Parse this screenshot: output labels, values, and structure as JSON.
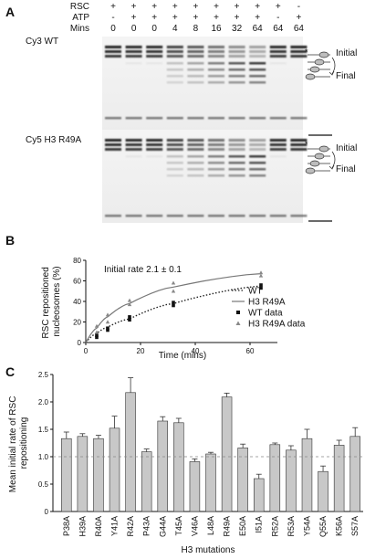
{
  "panels": {
    "a": {
      "letter": "A",
      "row_labels": [
        "RSC",
        "ATP",
        "Mins"
      ],
      "lanes": [
        {
          "rsc": "+",
          "atp": "-",
          "mins": "0"
        },
        {
          "rsc": "+",
          "atp": "+",
          "mins": "0"
        },
        {
          "rsc": "+",
          "atp": "+",
          "mins": "0"
        },
        {
          "rsc": "+",
          "atp": "+",
          "mins": "4"
        },
        {
          "rsc": "+",
          "atp": "+",
          "mins": "8"
        },
        {
          "rsc": "+",
          "atp": "+",
          "mins": "16"
        },
        {
          "rsc": "+",
          "atp": "+",
          "mins": "32"
        },
        {
          "rsc": "+",
          "atp": "+",
          "mins": "64"
        },
        {
          "rsc": "+",
          "atp": "-",
          "mins": "64"
        },
        {
          "rsc": "-",
          "atp": "+",
          "mins": "64"
        }
      ],
      "gels": [
        {
          "label": "Cy3 WT",
          "initial": "Initial",
          "final": "Final",
          "star": "*"
        },
        {
          "label": "Cy5 H3 R49A",
          "initial": "Initial",
          "final": "Final",
          "star": "*"
        }
      ]
    },
    "b": {
      "letter": "B",
      "annotation": "Initial rate  2.1 ± 0.1"
    },
    "c": {
      "letter": "C"
    }
  },
  "chart_data": [
    {
      "type": "line",
      "title": "",
      "xlabel": "Time (mins)",
      "ylabel": "RSC repositioned nucleosomes (%)",
      "xlim": [
        0,
        70
      ],
      "ylim": [
        0,
        80
      ],
      "xticks": [
        0,
        20,
        40,
        60
      ],
      "yticks": [
        0,
        20,
        40,
        60,
        80
      ],
      "grid": false,
      "legend_placement": "lower-right",
      "series": [
        {
          "name": "WT",
          "style": "dotted-line",
          "color": "#222222",
          "x": [
            0,
            4,
            8,
            16,
            32,
            64
          ],
          "y": [
            0,
            9,
            15,
            23,
            38,
            55
          ]
        },
        {
          "name": "H3 R49A",
          "style": "solid-line",
          "color": "#777777",
          "x": [
            0,
            4,
            8,
            16,
            32,
            64
          ],
          "y": [
            0,
            14,
            25,
            38,
            54,
            67
          ]
        },
        {
          "name": "WT data",
          "style": "square-markers",
          "color": "#111111",
          "x": [
            4,
            4,
            8,
            8,
            16,
            16,
            32,
            32,
            64,
            64
          ],
          "y": [
            5,
            7,
            12,
            14,
            22,
            25,
            36,
            39,
            53,
            56
          ]
        },
        {
          "name": "H3 R49A data",
          "style": "triangle-markers",
          "color": "#888888",
          "x": [
            4,
            4,
            8,
            8,
            16,
            16,
            32,
            32,
            64,
            64
          ],
          "y": [
            10,
            16,
            20,
            27,
            37,
            41,
            50,
            58,
            65,
            68
          ]
        }
      ]
    },
    {
      "type": "bar",
      "title": "",
      "xlabel": "H3 mutations",
      "ylabel": "Mean initial rate of RSC repositioning",
      "ylim": [
        0,
        2.5
      ],
      "yticks": [
        0,
        0.5,
        1.0,
        1.5,
        2.0,
        2.5
      ],
      "ytick_labels": [
        "0",
        "0.5",
        "1.0",
        "1.5",
        "2.0",
        "2.5"
      ],
      "grid": false,
      "reference_line": 1.0,
      "categories": [
        "P38A",
        "H39A",
        "R40A",
        "Y41A",
        "R42A",
        "P43A",
        "G44A",
        "T45A",
        "V46A",
        "L48A",
        "R49A",
        "E50A",
        "I51A",
        "R52A",
        "R53A",
        "Y54A",
        "Q55A",
        "K56A",
        "S57A"
      ],
      "values": [
        1.33,
        1.37,
        1.33,
        1.52,
        2.17,
        1.09,
        1.65,
        1.62,
        0.91,
        1.05,
        2.09,
        1.16,
        0.6,
        1.22,
        1.12,
        1.33,
        0.73,
        1.21,
        1.37
      ],
      "errors": [
        0.12,
        0.05,
        0.06,
        0.22,
        0.27,
        0.05,
        0.08,
        0.08,
        0.05,
        0.03,
        0.07,
        0.07,
        0.08,
        0.03,
        0.08,
        0.17,
        0.1,
        0.09,
        0.16
      ],
      "bar_color": "#c8c8c8"
    }
  ]
}
